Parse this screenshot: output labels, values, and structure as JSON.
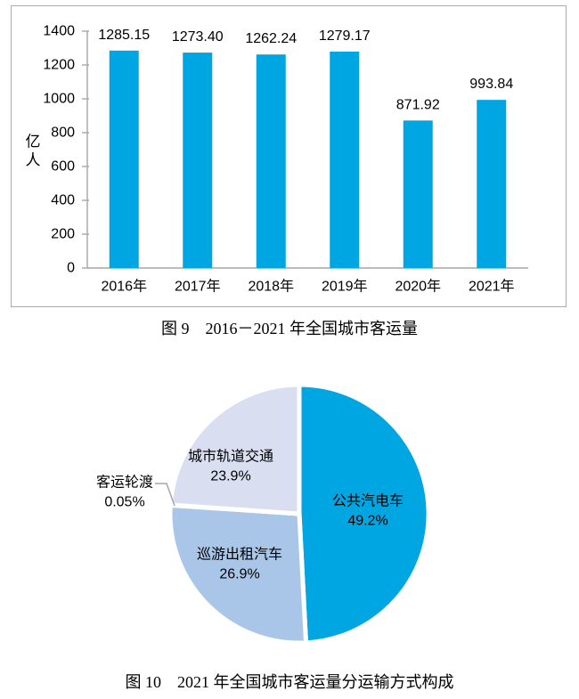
{
  "colors": {
    "chart_blue": "#00A6E2",
    "pie_light_lavender": "#D9DEF1",
    "pie_medium_blue": "#A9C6E8",
    "pie_ferry_sliver": "#ffffff",
    "axis_grey": "#A6A6A6",
    "panel_border_grey": "#AAAAAA",
    "leader_line_grey": "#A6A6A6",
    "text_black": "#000000"
  },
  "chart_data": [
    {
      "type": "bar",
      "title": "图 9　2016－2021 年全国城市客运量",
      "categories": [
        "2016年",
        "2017年",
        "2018年",
        "2019年",
        "2020年",
        "2021年"
      ],
      "values": [
        1285.15,
        1273.4,
        1262.24,
        1279.17,
        871.92,
        993.84
      ],
      "value_labels": [
        "1285.15",
        "1273.40",
        "1262.24",
        "1279.17",
        "871.92",
        "993.84"
      ],
      "ylabel": "亿人",
      "ylabel_chars": [
        "亿",
        "人"
      ],
      "y_ticks": [
        0,
        200,
        400,
        600,
        800,
        1000,
        1200,
        1400
      ],
      "ylim": [
        0,
        1400
      ],
      "grid": false,
      "legend": "none",
      "bar_color": "#00A6E2"
    },
    {
      "type": "pie",
      "title": "图 10　2021 年全国城市客运量分运输方式构成",
      "start_angle": "12-oclock",
      "direction": "clockwise",
      "legend": "none",
      "slices": [
        {
          "label": "公共汽电车",
          "pct_label": "49.2%",
          "value_pct": 49.2,
          "color": "#00A6E2",
          "label_position": "inside-right"
        },
        {
          "label": "巡游出租汽车",
          "pct_label": "26.9%",
          "value_pct": 26.9,
          "color": "#A9C6E8",
          "label_position": "inside-lower-left"
        },
        {
          "label": "客运轮渡",
          "pct_label": "0.05%",
          "value_pct": 0.05,
          "color": "#ffffff",
          "label_position": "outside-left-with-leader"
        },
        {
          "label": "城市轨道交通",
          "pct_label": "23.9%",
          "value_pct": 23.9,
          "color": "#D9DEF1",
          "label_position": "inside-upper-left"
        }
      ]
    }
  ]
}
